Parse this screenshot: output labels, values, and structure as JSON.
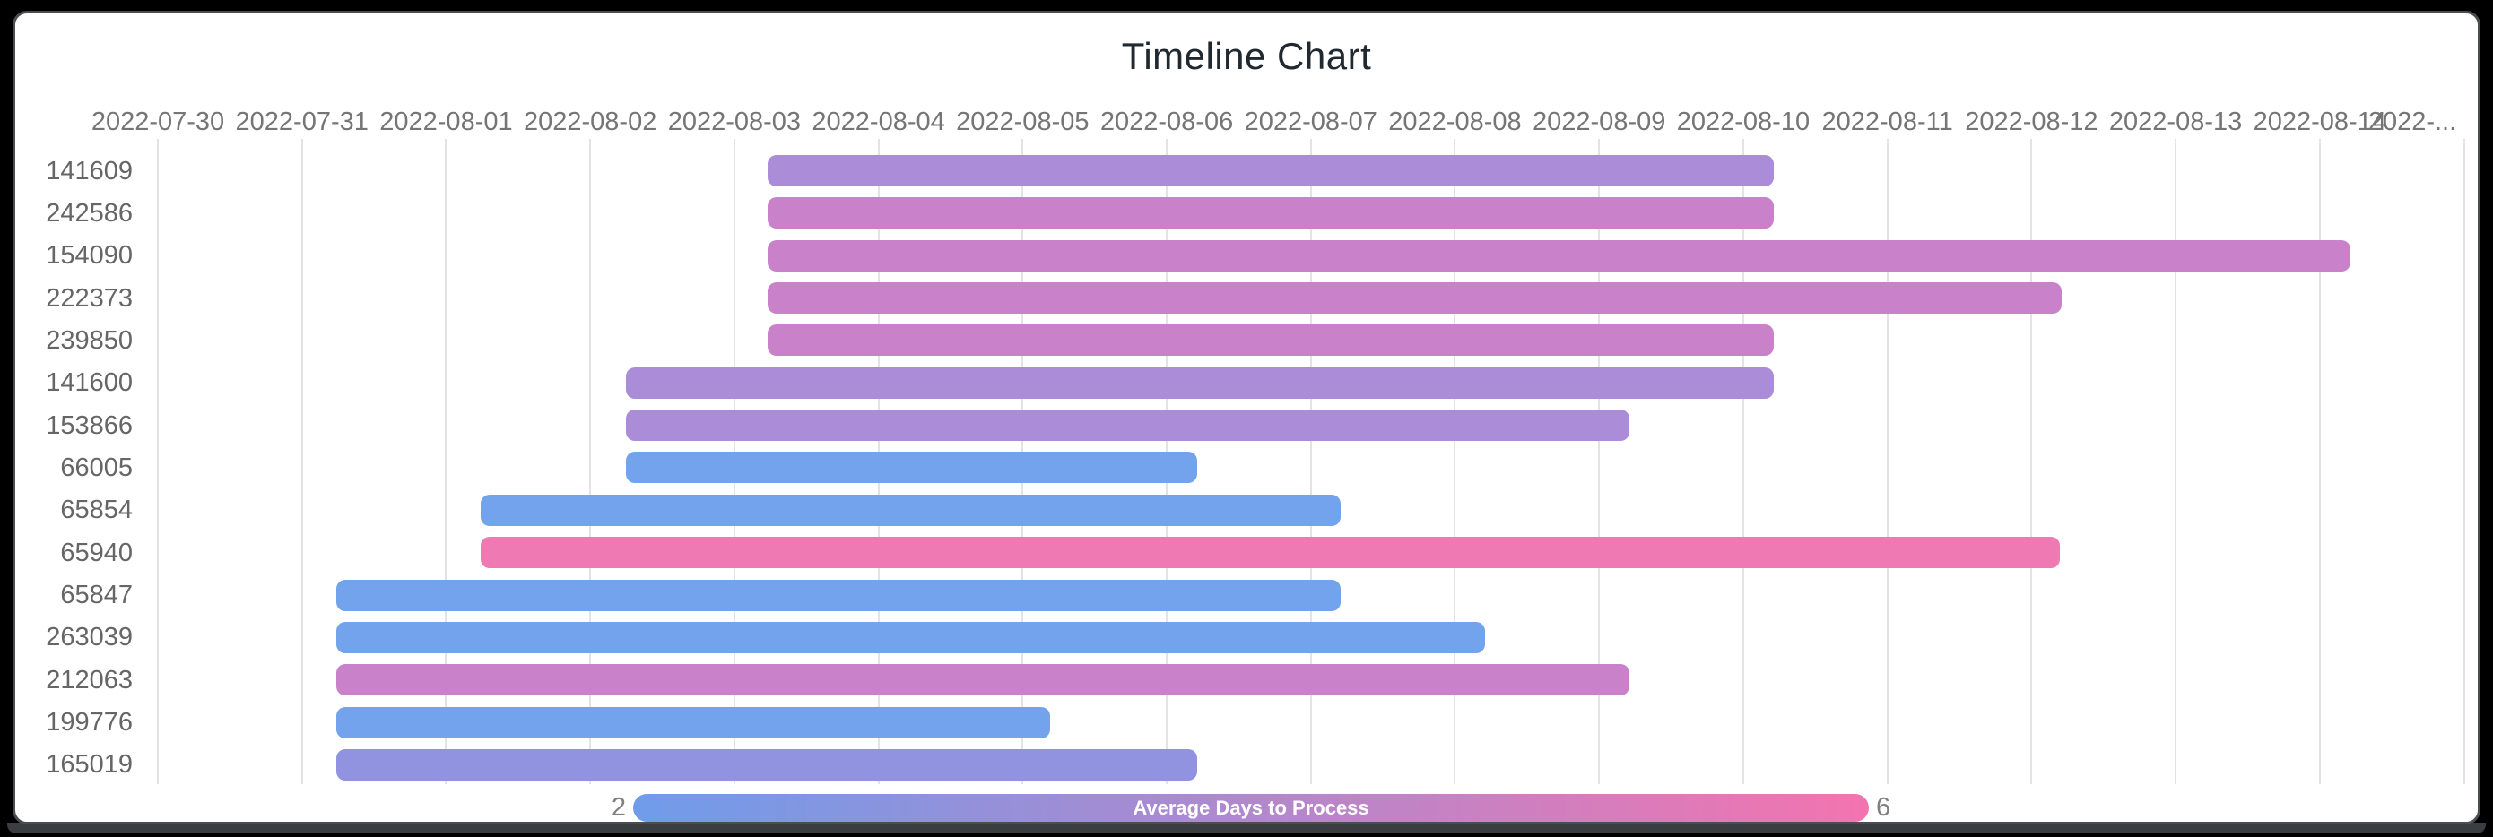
{
  "window": {
    "frame_color": "#000000",
    "card_background": "#ffffff",
    "card_border_color": "#4a4e51",
    "bottom_strip_color": "#3a3e41"
  },
  "chart_data": {
    "type": "bar",
    "subtype": "timeline-gantt",
    "title": "Timeline Chart",
    "title_color": "#212930",
    "x_axis": {
      "tick_labels": [
        "2022-07-30",
        "2022-07-31",
        "2022-08-01",
        "2022-08-02",
        "2022-08-03",
        "2022-08-04",
        "2022-08-05",
        "2022-08-06",
        "2022-08-07",
        "2022-08-08",
        "2022-08-09",
        "2022-08-10",
        "2022-08-11",
        "2022-08-12",
        "2022-08-13",
        "2022-08-14",
        "2022-..."
      ],
      "last_label_truncated": true,
      "gridlines": true,
      "gridline_color": "#e3e3e3",
      "label_color": "#757575"
    },
    "y_axis": {
      "label_color": "#666666"
    },
    "rows": [
      {
        "id": "141609",
        "start_date": "2022-08-03",
        "end_date": "2022-08-10",
        "start_day": 4.23,
        "end_day": 11.21,
        "duration_days": 7,
        "color": "#aa8cd9"
      },
      {
        "id": "242586",
        "start_date": "2022-08-03",
        "end_date": "2022-08-10",
        "start_day": 4.23,
        "end_day": 11.21,
        "duration_days": 7,
        "color": "#c981c9"
      },
      {
        "id": "154090",
        "start_date": "2022-08-03",
        "end_date": "2022-08-14",
        "start_day": 4.23,
        "end_day": 15.21,
        "duration_days": 11,
        "color": "#c981c9"
      },
      {
        "id": "222373",
        "start_date": "2022-08-03",
        "end_date": "2022-08-12",
        "start_day": 4.23,
        "end_day": 13.21,
        "duration_days": 9,
        "color": "#c981c9"
      },
      {
        "id": "239850",
        "start_date": "2022-08-03",
        "end_date": "2022-08-10",
        "start_day": 4.23,
        "end_day": 11.21,
        "duration_days": 7,
        "color": "#c981c9"
      },
      {
        "id": "141600",
        "start_date": "2022-08-02",
        "end_date": "2022-08-10",
        "start_day": 3.25,
        "end_day": 11.21,
        "duration_days": 8,
        "color": "#aa8cd9"
      },
      {
        "id": "153866",
        "start_date": "2022-08-02",
        "end_date": "2022-08-09",
        "start_day": 3.25,
        "end_day": 10.21,
        "duration_days": 7,
        "color": "#aa8cd9"
      },
      {
        "id": "66005",
        "start_date": "2022-08-02",
        "end_date": "2022-08-06",
        "start_day": 3.25,
        "end_day": 7.21,
        "duration_days": 4,
        "color": "#72a3ec"
      },
      {
        "id": "65854",
        "start_date": "2022-08-01",
        "end_date": "2022-08-07",
        "start_day": 2.24,
        "end_day": 8.21,
        "duration_days": 6,
        "color": "#72a3ec"
      },
      {
        "id": "65940",
        "start_date": "2022-08-01",
        "end_date": "2022-08-12",
        "start_day": 2.24,
        "end_day": 13.2,
        "duration_days": 11,
        "color": "#ef79b2"
      },
      {
        "id": "65847",
        "start_date": "2022-07-31",
        "end_date": "2022-08-07",
        "start_day": 1.24,
        "end_day": 8.21,
        "duration_days": 7,
        "color": "#72a3ec"
      },
      {
        "id": "263039",
        "start_date": "2022-07-31",
        "end_date": "2022-08-08",
        "start_day": 1.24,
        "end_day": 9.21,
        "duration_days": 8,
        "color": "#72a3ec"
      },
      {
        "id": "212063",
        "start_date": "2022-07-31",
        "end_date": "2022-08-09",
        "start_day": 1.24,
        "end_day": 10.21,
        "duration_days": 9,
        "color": "#c981c9"
      },
      {
        "id": "199776",
        "start_date": "2022-07-31",
        "end_date": "2022-08-05",
        "start_day": 1.24,
        "end_day": 6.19,
        "duration_days": 5,
        "color": "#72a3ec"
      },
      {
        "id": "165019",
        "start_date": "2022-07-31",
        "end_date": "2022-08-06",
        "start_day": 1.24,
        "end_day": 7.21,
        "duration_days": 6,
        "color": "#9193e0"
      }
    ],
    "legend": {
      "label": "Average Days to Process",
      "min": "2",
      "max": "6",
      "gradient_start": "#6f9cea",
      "gradient_end": "#f374af",
      "number_color": "#808080"
    }
  }
}
